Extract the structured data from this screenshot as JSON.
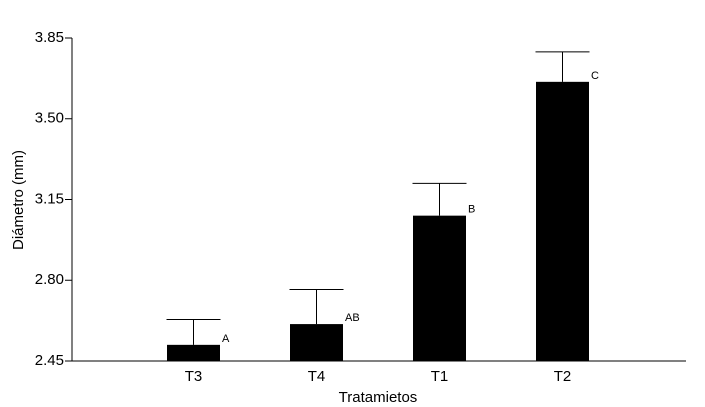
{
  "chart_data": {
    "type": "bar",
    "categories": [
      "T3",
      "T4",
      "T1",
      "T2"
    ],
    "values": [
      2.52,
      2.61,
      3.08,
      3.66
    ],
    "error_upper": [
      2.63,
      2.76,
      3.22,
      3.79
    ],
    "annotations": [
      "A",
      "AB",
      "B",
      "C"
    ],
    "title": "",
    "xlabel": "Tratamietos",
    "ylabel": "Diámetro (mm)",
    "ylim": [
      2.45,
      3.85
    ],
    "yticks": [
      2.45,
      2.8,
      3.15,
      3.5,
      3.85
    ],
    "ytick_labels": [
      "2.45",
      "2.80",
      "3.15",
      "3.50",
      "3.85"
    ],
    "grid": false,
    "bar_color": "#000000",
    "axis_color": "#000000"
  }
}
